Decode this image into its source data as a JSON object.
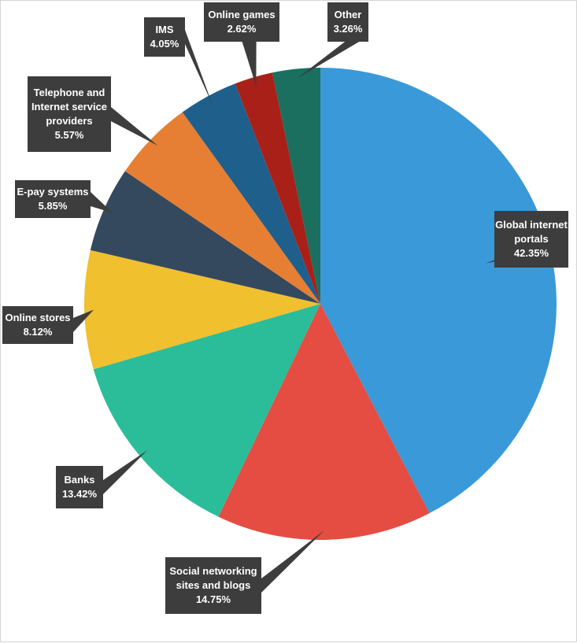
{
  "chart_data": {
    "type": "pie",
    "title": "",
    "slices": [
      {
        "label_lines": [
          "Global internet",
          "portals"
        ],
        "percent_label": "42.35%",
        "value": 42.35,
        "color": "#3a99d8"
      },
      {
        "label_lines": [
          "Social networking",
          "sites and blogs"
        ],
        "percent_label": "14.75%",
        "value": 14.75,
        "color": "#e54c42"
      },
      {
        "label_lines": [
          "Banks"
        ],
        "percent_label": "13.42%",
        "value": 13.42,
        "color": "#2bbd99"
      },
      {
        "label_lines": [
          "Online stores"
        ],
        "percent_label": "8.12%",
        "value": 8.12,
        "color": "#f0c02f"
      },
      {
        "label_lines": [
          "E-pay systems"
        ],
        "percent_label": "5.85%",
        "value": 5.85,
        "color": "#34495e"
      },
      {
        "label_lines": [
          "Telephone and",
          "Internet service",
          "providers"
        ],
        "percent_label": "5.57%",
        "value": 5.57,
        "color": "#e67f33"
      },
      {
        "label_lines": [
          "IMS"
        ],
        "percent_label": "4.05%",
        "value": 4.05,
        "color": "#1f5f8b"
      },
      {
        "label_lines": [
          "Online games"
        ],
        "percent_label": "2.62%",
        "value": 2.62,
        "color": "#a82018"
      },
      {
        "label_lines": [
          "Other"
        ],
        "percent_label": "3.26%",
        "value": 3.26,
        "color": "#1b6f5e"
      }
    ],
    "label_box_color": "#3d3d3d"
  }
}
